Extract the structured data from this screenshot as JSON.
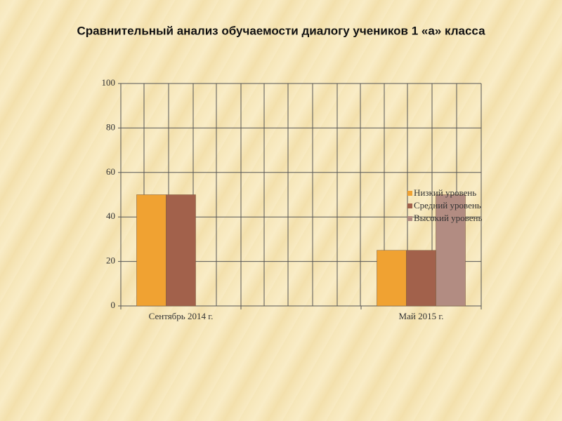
{
  "chart_data": {
    "type": "bar",
    "title": "Сравнительный анализ обучаемости диалогу учеников 1 «а» класса",
    "categories": [
      "Сентябрь 2014 г.",
      null,
      "Май 2015 г."
    ],
    "series": [
      {
        "name": "Низкий уровень",
        "color": "#f0a232",
        "values": [
          50,
          null,
          25
        ]
      },
      {
        "name": "Средний уровень",
        "color": "#a2614b",
        "values": [
          50,
          null,
          25
        ]
      },
      {
        "name": "Высокий уровень",
        "color": "#b28c82",
        "values": [
          0,
          null,
          50
        ]
      }
    ],
    "ylim": [
      0,
      100
    ],
    "yticks": [
      0,
      20,
      40,
      60,
      80,
      100
    ],
    "grid": true,
    "legend": "right"
  }
}
